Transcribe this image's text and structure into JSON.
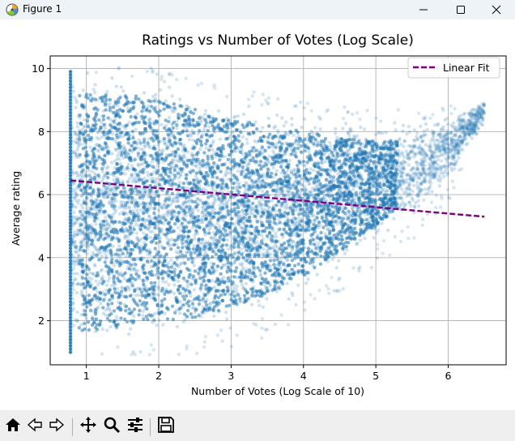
{
  "window": {
    "title": "Figure 1",
    "app_icon": "matplotlib-figure-icon",
    "controls": [
      "minimize-icon",
      "maximize-icon",
      "close-icon"
    ]
  },
  "toolbar": {
    "buttons": [
      "home-icon",
      "back-arrow-icon",
      "forward-arrow-icon",
      "pan-move-icon",
      "zoom-magnifier-icon",
      "configure-subplots-icon",
      "save-floppy-icon"
    ]
  },
  "colors": {
    "scatter": "#1f77b4",
    "fit_line": "#800080",
    "grid": "#b0b0b0",
    "titlebar_bg": "#eef3f8",
    "toolbar_bg": "#efefef"
  },
  "chart_data": {
    "type": "scatter",
    "title": "Ratings vs Number of Votes (Log Scale)",
    "xlabel": "Number of Votes (Log Scale of 10)",
    "ylabel": "Average rating",
    "xlim": [
      0.5,
      6.8
    ],
    "ylim": [
      0.6,
      10.4
    ],
    "xticks": [
      1,
      2,
      3,
      4,
      5,
      6
    ],
    "yticks": [
      2,
      4,
      6,
      8,
      10
    ],
    "xtick_labels": [
      "1",
      "2",
      "3",
      "4",
      "5",
      "6"
    ],
    "ytick_labels": [
      "2",
      "4",
      "6",
      "8",
      "10"
    ],
    "grid": true,
    "legend": {
      "placement": "top-right",
      "entries": [
        {
          "label": "Linear Fit",
          "style": "dashed",
          "color": "#800080"
        }
      ]
    },
    "scatter_alpha": 0.15,
    "series": [
      {
        "kind": "scatter",
        "description": "dense cloud of points",
        "density_envelope": {
          "x": [
            0.78,
            1.0,
            1.5,
            2.0,
            2.5,
            3.0,
            3.5,
            4.0,
            4.5,
            5.0,
            5.5,
            6.0,
            6.5
          ],
          "y_low": [
            1.0,
            1.0,
            1.2,
            1.4,
            1.5,
            1.8,
            2.2,
            2.8,
            3.6,
            4.4,
            5.2,
            6.4,
            8.2
          ],
          "y_high": [
            10.0,
            9.9,
            9.8,
            9.6,
            9.3,
            9.0,
            8.8,
            8.6,
            8.4,
            8.3,
            8.3,
            8.4,
            8.9
          ]
        }
      },
      {
        "kind": "line",
        "name": "Linear Fit",
        "style": "dashed",
        "x": [
          0.78,
          6.5
        ],
        "y": [
          6.45,
          5.3
        ]
      }
    ]
  }
}
